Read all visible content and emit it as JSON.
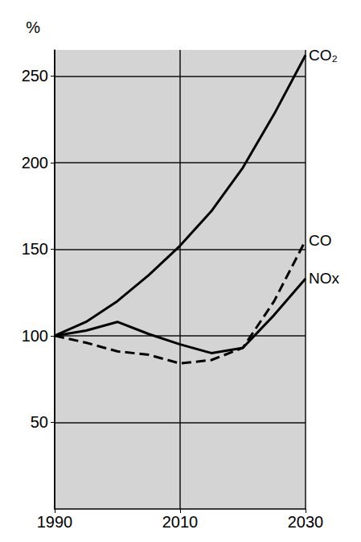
{
  "chart_data": {
    "type": "line",
    "x": [
      1990,
      1995,
      2000,
      2005,
      2010,
      2015,
      2020,
      2025,
      2030
    ],
    "series": [
      {
        "name": "CO₂",
        "color": "#000000",
        "line_style": "solid",
        "values": [
          100,
          108,
          120,
          135,
          152,
          172,
          197,
          228,
          262
        ]
      },
      {
        "name": "CO",
        "color": "#000000",
        "line_style": "dashed",
        "values": [
          100,
          96,
          91,
          89,
          84,
          86,
          93,
          120,
          155
        ]
      },
      {
        "name": "NOx",
        "color": "#000000",
        "line_style": "solid",
        "values": [
          100,
          103,
          108,
          101,
          95,
          90,
          93,
          112,
          133
        ]
      }
    ],
    "xlim": [
      1990,
      2030
    ],
    "xticks": [
      1990,
      2010,
      2030
    ],
    "ylim": [
      0,
      265
    ],
    "yticks": [
      50,
      100,
      150,
      200,
      250
    ],
    "ylabel": "%",
    "grid": true
  }
}
